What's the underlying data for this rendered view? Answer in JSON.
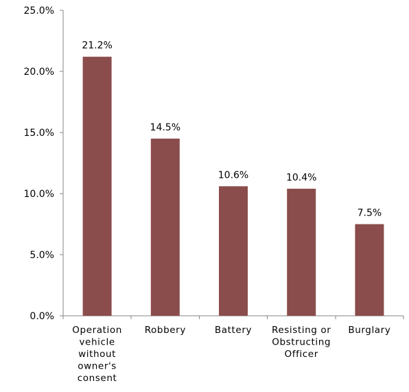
{
  "chart_data": {
    "type": "bar",
    "categories": [
      "Operation vehicle without owner's consent",
      "Robbery",
      "Battery",
      "Resisting or Obstructing Officer",
      "Burglary"
    ],
    "category_label_lines": [
      [
        "Operation",
        "vehicle",
        "without",
        "owner's",
        "consent"
      ],
      [
        "Robbery"
      ],
      [
        "Battery"
      ],
      [
        "Resisting or",
        "Obstructing",
        "Officer"
      ],
      [
        "Burglary"
      ]
    ],
    "values": [
      21.2,
      14.5,
      10.6,
      10.4,
      7.5
    ],
    "data_labels": [
      "21.2%",
      "14.5%",
      "10.6%",
      "10.4%",
      "7.5%"
    ],
    "y_ticks": [
      0,
      5,
      10,
      15,
      20,
      25
    ],
    "y_tick_labels": [
      "0.0%",
      "5.0%",
      "10.0%",
      "15.0%",
      "20.0%",
      "25.0%"
    ],
    "ylim": [
      0,
      25
    ],
    "grid": false,
    "legend": "none",
    "bar_color": "#8B4C4C"
  }
}
